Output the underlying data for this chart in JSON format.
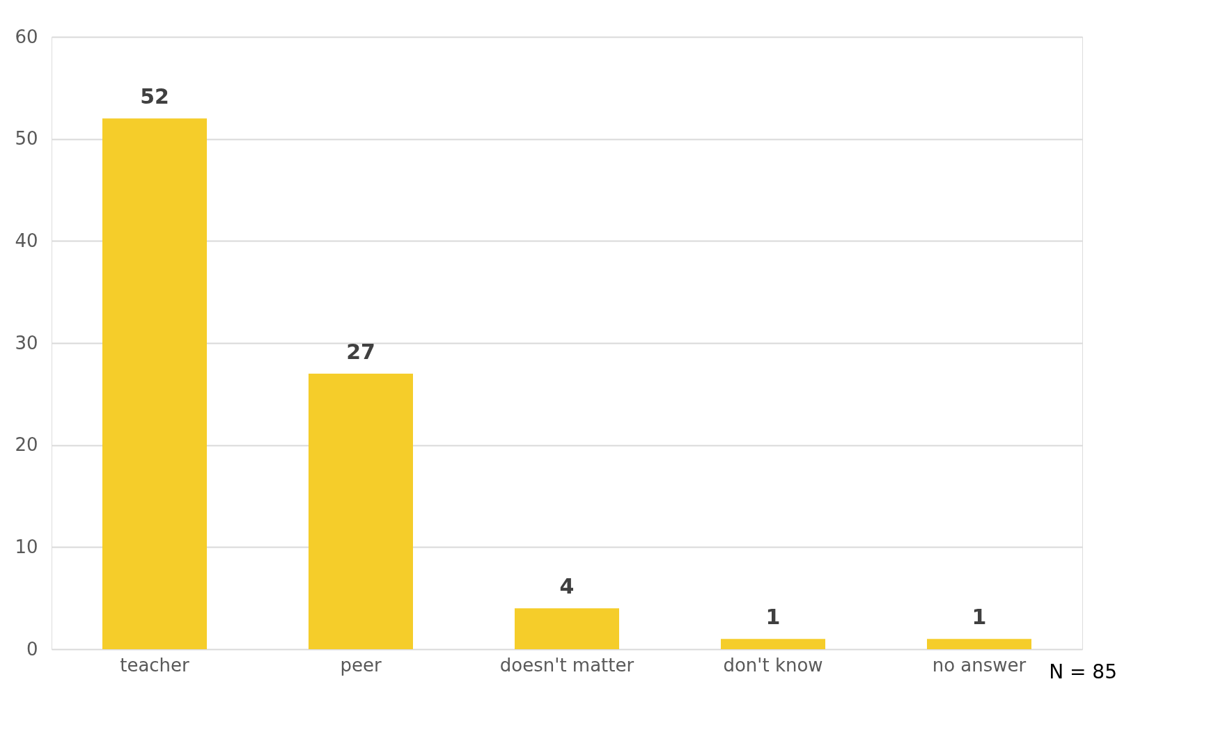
{
  "chart_data": {
    "type": "bar",
    "categories": [
      "teacher",
      "peer",
      "doesn't matter",
      "don't know",
      "no answer"
    ],
    "values": [
      52,
      27,
      4,
      1,
      1
    ],
    "color": "#f5cd2a",
    "ylim": [
      0,
      60
    ],
    "yticks": [
      0,
      10,
      20,
      30,
      40,
      50,
      60
    ],
    "grid": "y",
    "data_labels": true,
    "annotations": [
      "N = 85"
    ]
  }
}
